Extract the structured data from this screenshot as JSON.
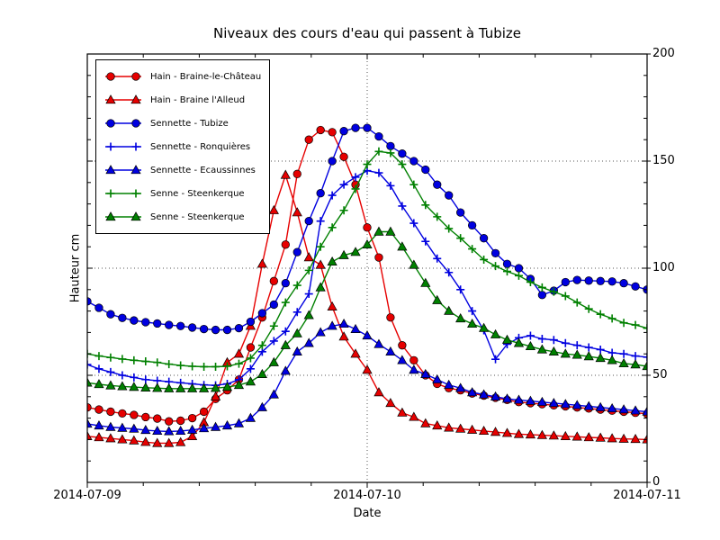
{
  "chart_data": {
    "type": "line",
    "title": "Niveaux des cours d'eau qui passent à Tubize",
    "xlabel": "Date",
    "ylabel": "Hauteur cm",
    "xtick_labels": [
      "2014-07-09",
      "2014-07-10",
      "2014-07-11"
    ],
    "xtick_hours": [
      0,
      24,
      48
    ],
    "x_minor_step_hours": 4.8,
    "y_minor_step": 10,
    "yticks": [
      0,
      50,
      100,
      150,
      200
    ],
    "ylim": [
      0,
      200
    ],
    "xlim_hours": [
      0,
      48
    ],
    "x_unit": "hours since 2014-07-09 00:00",
    "grid": {
      "horizontal_at": [
        50,
        100,
        150
      ],
      "vertical_at_hours": [
        24
      ],
      "style": "dotted"
    },
    "legend_position": "upper left",
    "x": [
      0,
      1,
      2,
      3,
      4,
      5,
      6,
      7,
      8,
      9,
      10,
      11,
      12,
      13,
      14,
      15,
      16,
      17,
      18,
      19,
      20,
      21,
      22,
      23,
      24,
      25,
      26,
      27,
      28,
      29,
      30,
      31,
      32,
      33,
      34,
      35,
      36,
      37,
      38,
      39,
      40,
      41,
      42,
      43,
      44,
      45,
      46,
      47,
      48
    ],
    "series": [
      {
        "name": "Hain - Braine-le-Château",
        "color": "#e60000",
        "marker": "circle",
        "values": [
          35,
          34,
          33,
          32.2,
          31.5,
          30.5,
          29.8,
          28.5,
          28.8,
          30,
          33,
          39,
          43,
          48,
          63,
          77,
          94,
          111,
          144,
          160,
          164.5,
          163.5,
          152,
          139,
          119,
          105,
          77,
          64,
          57,
          50,
          46,
          44,
          43,
          41.5,
          40.5,
          39.5,
          38.5,
          37.5,
          37,
          36.5,
          36,
          35.5,
          35,
          34.5,
          34,
          33.5,
          33,
          32.5,
          32
        ]
      },
      {
        "name": "Hain - Braine l'Alleud",
        "color": "#e60000",
        "marker": "triangle",
        "values": [
          21.5,
          21,
          20.5,
          20,
          19.5,
          18.8,
          18.3,
          18.3,
          18.7,
          21.5,
          28,
          40,
          56,
          60,
          73,
          102,
          127,
          143.5,
          126,
          105,
          101.5,
          82,
          68,
          60,
          52.5,
          42,
          37,
          32.5,
          30.5,
          27.5,
          26.5,
          25.5,
          25,
          24.5,
          24,
          23.5,
          23,
          22.5,
          22.3,
          22,
          21.8,
          21.5,
          21.3,
          21,
          20.8,
          20.5,
          20.3,
          20.2,
          20
        ]
      },
      {
        "name": "Sennette - Tubize",
        "color": "#0000e0",
        "marker": "circle",
        "values": [
          84.5,
          81.5,
          78.5,
          76.8,
          75.6,
          74.8,
          74.2,
          73.5,
          73,
          72.3,
          71.6,
          71.2,
          71.2,
          72,
          75,
          79,
          83,
          93,
          107.5,
          122,
          135,
          150,
          164,
          165.5,
          165.5,
          161.5,
          157,
          153.5,
          150,
          146,
          139,
          134,
          126,
          120,
          114,
          107,
          102,
          100,
          95,
          87.5,
          89.5,
          93.5,
          94.5,
          94.2,
          94,
          93.8,
          93,
          91.5,
          90
        ]
      },
      {
        "name": "Sennette - Ronquières",
        "color": "#0000e0",
        "marker": "plus",
        "values": [
          55,
          53,
          51.5,
          50,
          49,
          48,
          47.5,
          47,
          46.5,
          46,
          45.5,
          45.3,
          46,
          48,
          53,
          61,
          66,
          70.5,
          79.5,
          88,
          122,
          134,
          139,
          142.5,
          145.5,
          144.5,
          138.5,
          129,
          121,
          112.5,
          104.5,
          98,
          90,
          80,
          71,
          57.5,
          64.5,
          67.5,
          68.5,
          67,
          66.5,
          65,
          64,
          63,
          62,
          60.5,
          60,
          59,
          58.5
        ]
      },
      {
        "name": "Sennette - Ecaussinnes",
        "color": "#0000e0",
        "marker": "triangle",
        "values": [
          27.3,
          26.5,
          25.8,
          25.4,
          25,
          24.4,
          24,
          23.8,
          24,
          24.5,
          25.2,
          25.8,
          26.5,
          27.5,
          30,
          35,
          41,
          52,
          61,
          65,
          70,
          73,
          74,
          71.5,
          68.5,
          64.5,
          61,
          57,
          52.5,
          50.5,
          48,
          45.5,
          44,
          42,
          41,
          40,
          39,
          38.5,
          38,
          37.5,
          37,
          36.5,
          36,
          35.5,
          35,
          34.5,
          34,
          33.5,
          33
        ]
      },
      {
        "name": "Senne - Steenkerque",
        "color": "#008000",
        "marker": "plus",
        "values": [
          60,
          59,
          58.3,
          57.6,
          57,
          56.5,
          56,
          55.2,
          54.6,
          54.2,
          54,
          54,
          54.2,
          55.4,
          58,
          64,
          73,
          84,
          92,
          99,
          110,
          119,
          127,
          137,
          148.5,
          154.5,
          153.8,
          148.5,
          139,
          129.5,
          124,
          118.5,
          114,
          109,
          104,
          101,
          98.5,
          96.5,
          93.5,
          91,
          89,
          87,
          84,
          81,
          78.5,
          76.5,
          74.5,
          73.5,
          72
        ]
      },
      {
        "name": "Senne - Steenkerque",
        "color": "#008000",
        "marker": "triangle",
        "values": [
          46.5,
          45.8,
          45.2,
          44.8,
          44.5,
          44.2,
          44,
          43.8,
          43.8,
          43.8,
          43.8,
          44,
          44.5,
          45.4,
          47,
          50.5,
          56,
          64,
          69.5,
          78,
          91,
          103,
          106,
          107.5,
          111,
          117,
          117,
          110,
          101.5,
          93,
          85,
          80,
          76.5,
          74,
          72,
          69,
          66.5,
          65,
          63.5,
          62,
          61,
          60,
          59.5,
          58.8,
          58,
          57,
          55.5,
          55,
          54.2
        ]
      }
    ]
  }
}
